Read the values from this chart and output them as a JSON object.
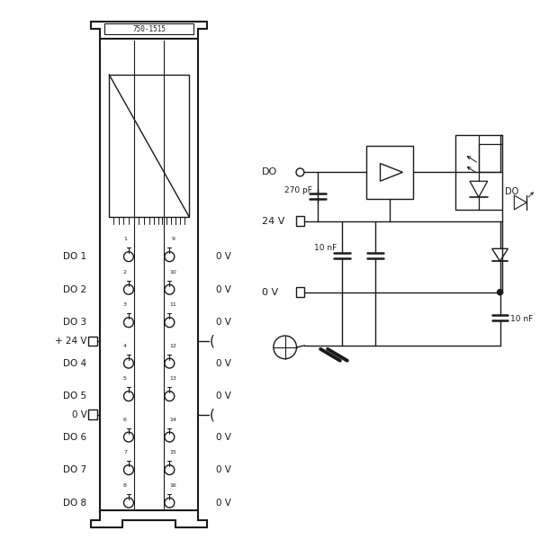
{
  "bg_color": "#ffffff",
  "line_color": "#1a1a1a",
  "text_color": "#1a1a1a",
  "module_label": "750-1515",
  "left_labels": [
    "DO 1",
    "DO 2",
    "DO 3",
    "+ 24 V",
    "DO 4",
    "DO 5",
    "0 V",
    "DO 6",
    "DO 7",
    "DO 8"
  ],
  "pin_left": [
    1,
    2,
    3,
    4,
    5,
    6,
    7,
    8
  ],
  "pin_right": [
    9,
    10,
    11,
    12,
    13,
    14,
    15,
    16
  ],
  "schematic_labels": [
    "DO",
    "270 pF",
    "24 V",
    "10 nF",
    "0 V",
    "10 nF",
    "DO"
  ]
}
